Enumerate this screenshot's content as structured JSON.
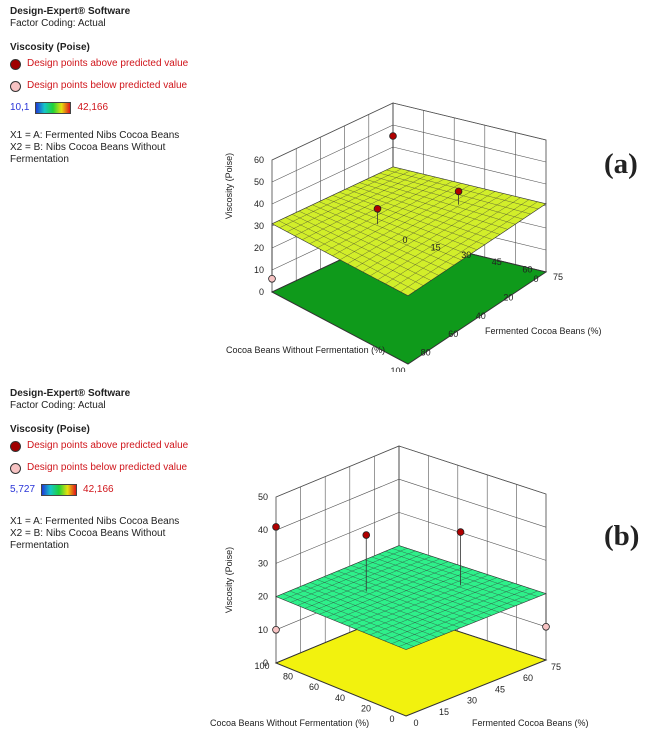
{
  "panels": [
    {
      "label": "(a)",
      "software": "Design-Expert® Software",
      "coding": "Factor Coding: Actual",
      "response": "Viscosity (Poise)",
      "above": "Design points above predicted value",
      "below": "Design points below predicted value",
      "range_low": "10,1",
      "range_high": "42,166",
      "x1": "X1 = A: Fermented Nibs Cocoa Beans",
      "x2": "X2 = B: Nibs Cocoa Beans Without",
      "x2b": "Fermentation",
      "surface_color": "#d2ee2a",
      "floor_color": "#0f9a1b"
    },
    {
      "label": "(b)",
      "software": "Design-Expert® Software",
      "coding": "Factor Coding: Actual",
      "response": "Viscosity (Poise)",
      "above": "Design points above predicted value",
      "below": "Design points below predicted value",
      "range_low": "5,727",
      "range_high": "42,166",
      "x1": "X1 = A: Fermented Nibs Cocoa Beans",
      "x2": "X2 = B: Nibs Cocoa Beans Without",
      "x2b": "Fermentation",
      "surface_color": "#2ef08a",
      "floor_color": "#f2f20e"
    }
  ],
  "chart_data": [
    {
      "type": "surface",
      "zlabel": "Viscosity (Poise)",
      "xlabel": "Fermented Cocoa Beans (%)",
      "ylabel": "Cocoa Beans Without Fermentation  (%)",
      "x_ticks": [
        "0",
        "15",
        "30",
        "45",
        "60",
        "75"
      ],
      "y_ticks": [
        "0",
        "20",
        "40",
        "60",
        "80",
        "100"
      ],
      "z_ticks": [
        "0",
        "10",
        "20",
        "30",
        "40",
        "50",
        "60"
      ],
      "zlim": [
        0,
        60
      ],
      "surface_level": 31,
      "points_above": [
        [
          0,
          0,
          45
        ],
        [
          30,
          60,
          38
        ],
        [
          45,
          20,
          37
        ]
      ],
      "points_below": [
        [
          0,
          100,
          6
        ]
      ]
    },
    {
      "type": "surface",
      "zlabel": "Viscosity (Poise)",
      "xlabel": "Fermented Cocoa Beans (%)",
      "ylabel": "Cocoa Beans Without Fermentation  (%)",
      "x_ticks": [
        "0",
        "15",
        "30",
        "45",
        "60",
        "75"
      ],
      "y_ticks": [
        "0",
        "20",
        "40",
        "60",
        "80",
        "100"
      ],
      "z_ticks": [
        "0",
        "10",
        "20",
        "30",
        "40",
        "50"
      ],
      "zlim": [
        0,
        50
      ],
      "surface_level": 20,
      "points_above": [
        [
          0,
          100,
          41
        ],
        [
          30,
          70,
          37
        ],
        [
          60,
          40,
          36
        ]
      ],
      "points_below": [
        [
          0,
          100,
          10
        ],
        [
          75,
          0,
          10
        ]
      ]
    }
  ]
}
